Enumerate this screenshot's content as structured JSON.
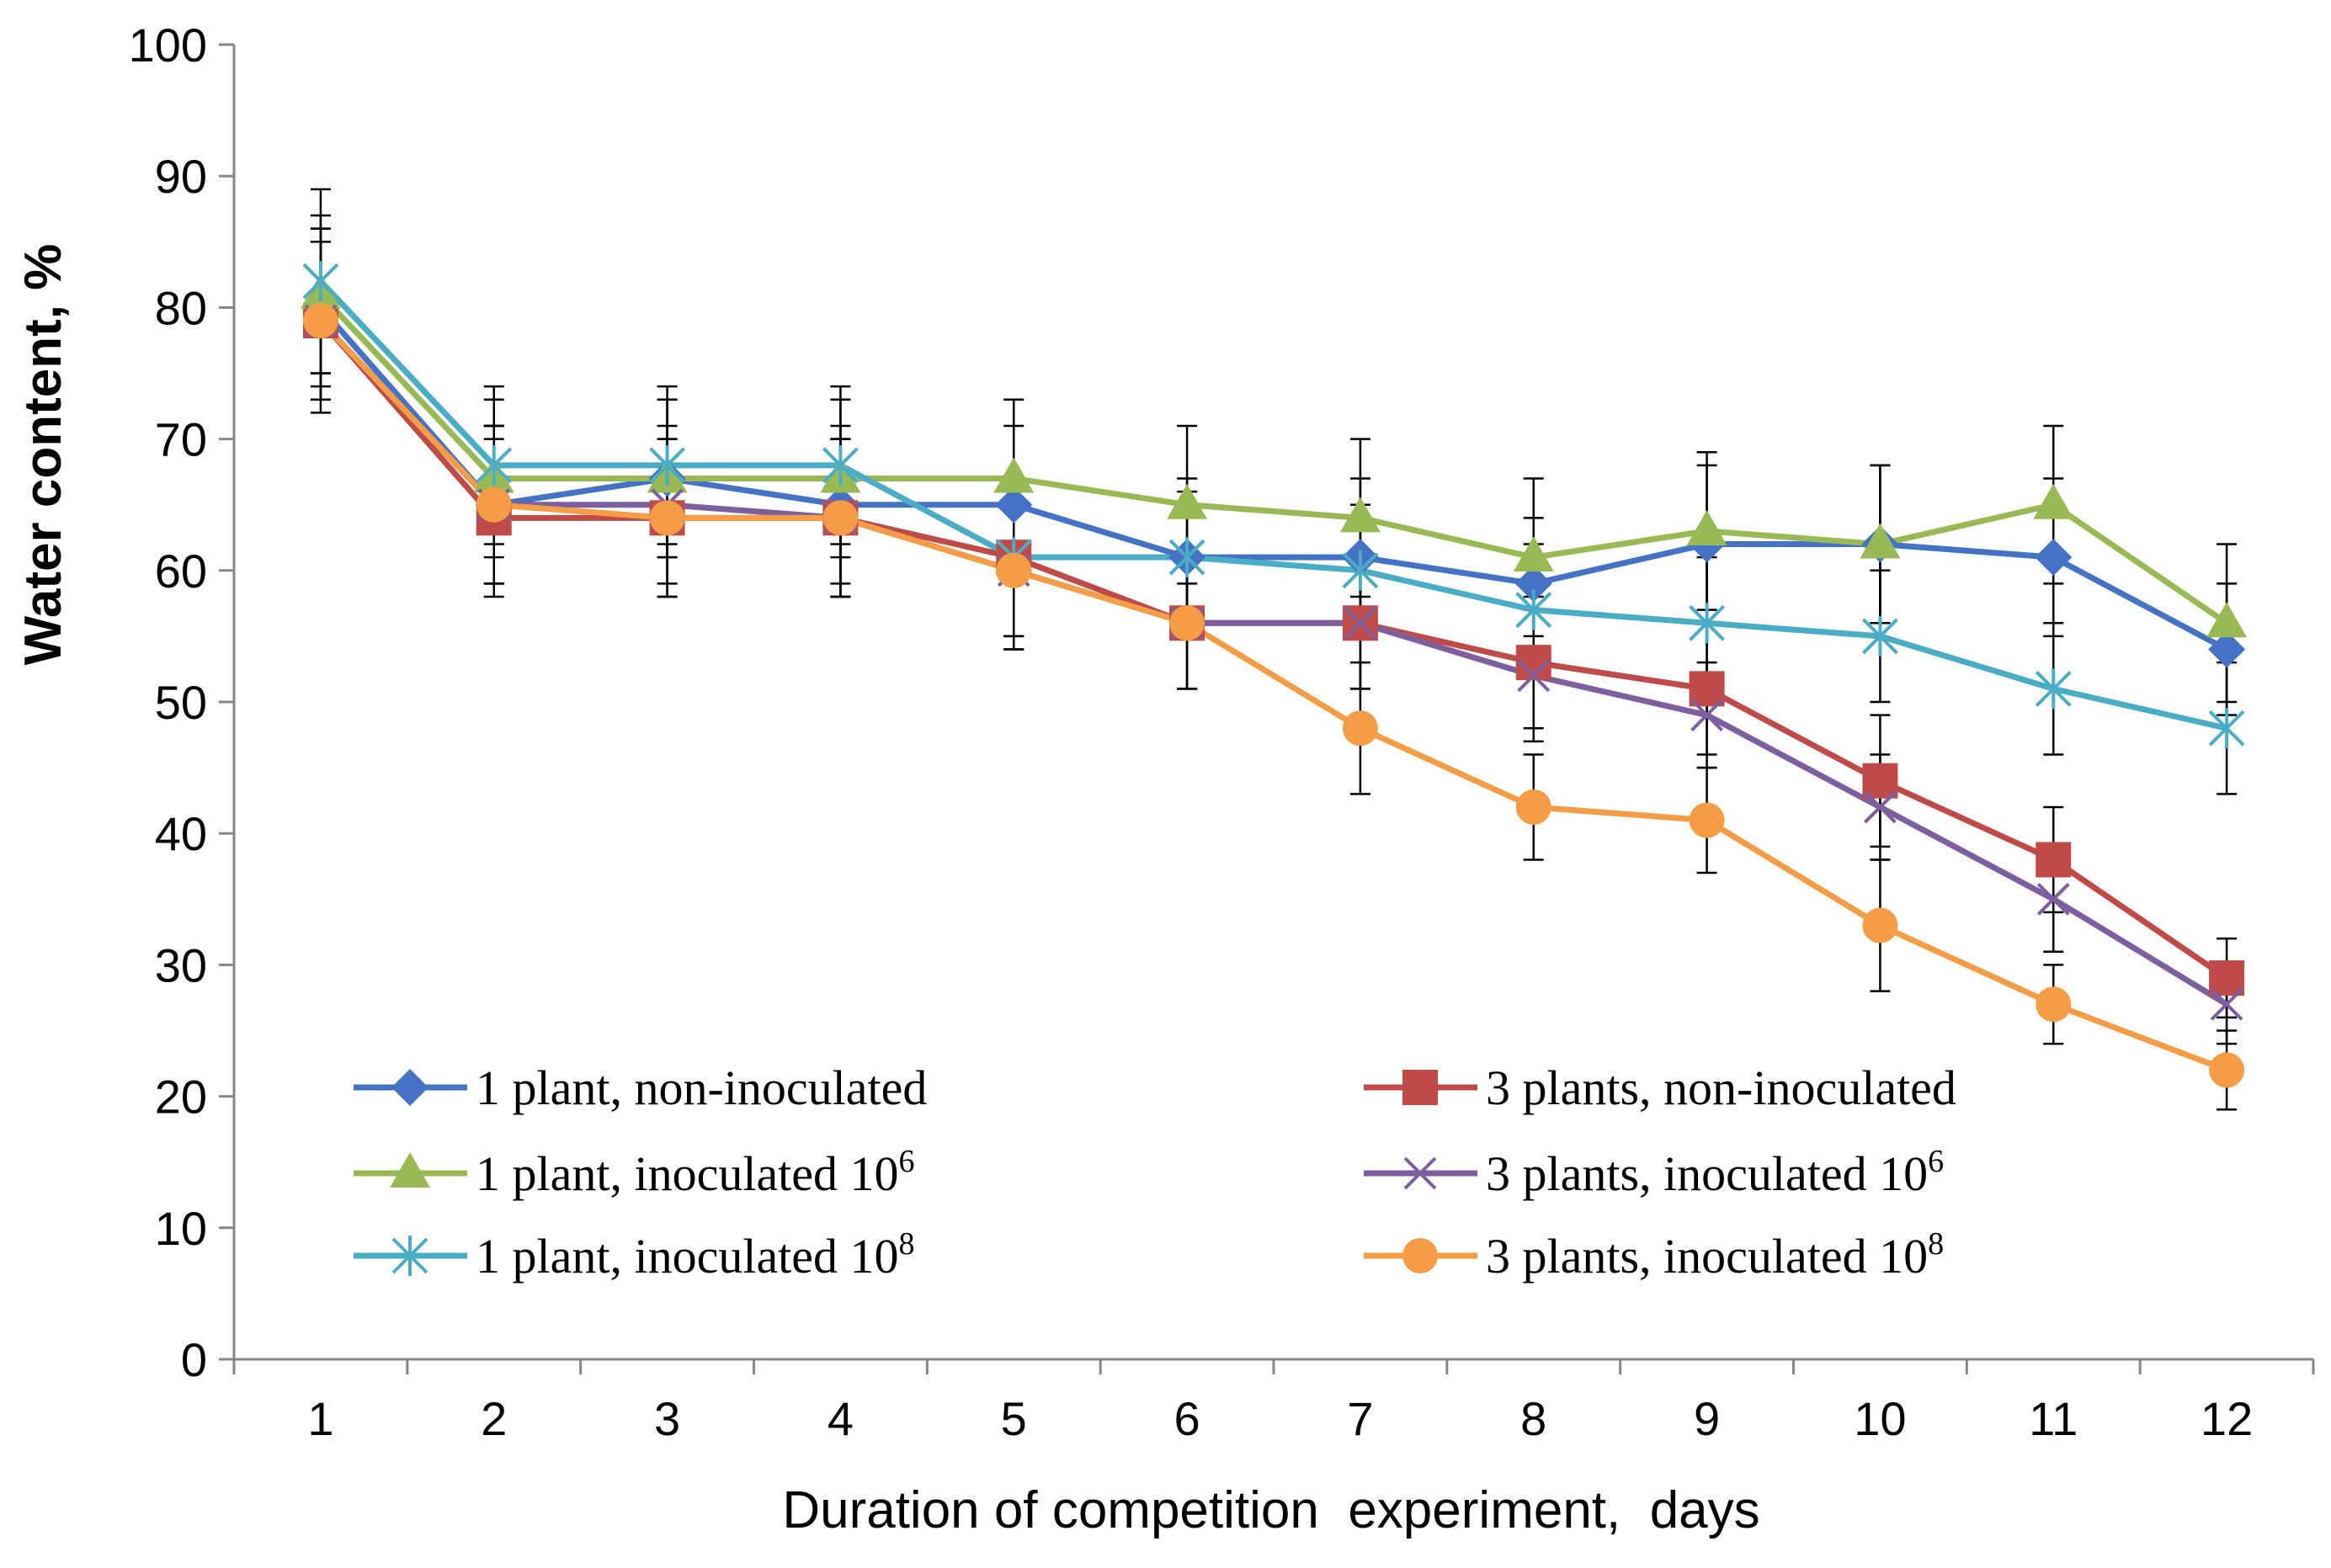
{
  "chart_data": {
    "type": "line",
    "title": "",
    "xlabel": "Duration of competition  experiment,  days",
    "ylabel": "Water content, %",
    "x": [
      1,
      2,
      3,
      4,
      5,
      6,
      7,
      8,
      9,
      10,
      11,
      12
    ],
    "xticks": [
      "1",
      "2",
      "3",
      "4",
      "5",
      "6",
      "7",
      "8",
      "9",
      "10",
      "11",
      "12"
    ],
    "ylim": [
      0,
      100
    ],
    "yticks": [
      "0",
      "10",
      "20",
      "30",
      "40",
      "50",
      "60",
      "70",
      "80",
      "90",
      "100"
    ],
    "grid": false,
    "legend_position": "bottom-inside",
    "series": [
      {
        "name": "1 plant, non-inoculated",
        "name_main": "1 plant, non-inoculated",
        "name_sup": "",
        "color": "#4472C4",
        "marker": "diamond",
        "values": [
          80,
          65,
          67,
          65,
          65,
          61,
          61,
          59,
          62,
          62,
          61,
          54
        ],
        "errors": [
          6,
          6,
          6,
          6,
          6,
          6,
          6,
          5,
          6,
          6,
          6,
          5
        ]
      },
      {
        "name": "3 plants, non-inoculated",
        "name_main": "3 plants, non-inoculated",
        "name_sup": "",
        "color": "#BE4B48",
        "marker": "square",
        "values": [
          79,
          64,
          64,
          64,
          61,
          56,
          56,
          53,
          51,
          44,
          38,
          29
        ],
        "errors": [
          6,
          6,
          6,
          6,
          6,
          5,
          5,
          5,
          5,
          5,
          4,
          3
        ]
      },
      {
        "name": "1 plant, inoculated 10^6",
        "name_main": "1 plant, inoculated 10",
        "name_sup": "6",
        "color": "#98B954",
        "marker": "triangle",
        "values": [
          81,
          67,
          67,
          67,
          67,
          65,
          64,
          61,
          63,
          62,
          65,
          56
        ],
        "errors": [
          6,
          6,
          6,
          6,
          6,
          6,
          6,
          6,
          6,
          6,
          6,
          6
        ]
      },
      {
        "name": "3 plants, inoculated 10^6",
        "name_main": "3 plants, inoculated 10",
        "name_sup": "6",
        "color": "#7D5FA0",
        "marker": "x",
        "values": [
          79,
          65,
          65,
          64,
          60,
          56,
          56,
          52,
          49,
          42,
          35,
          27
        ],
        "errors": [
          6,
          6,
          6,
          6,
          6,
          5,
          5,
          5,
          4,
          4,
          4,
          3
        ]
      },
      {
        "name": "1 plant, inoculated 10^8",
        "name_main": "1 plant, inoculated 10",
        "name_sup": "8",
        "color": "#4BACC6",
        "marker": "star",
        "values": [
          82,
          68,
          68,
          68,
          61,
          61,
          60,
          57,
          56,
          55,
          51,
          48
        ],
        "errors": [
          7,
          6,
          6,
          6,
          6,
          5,
          5,
          5,
          5,
          5,
          5,
          5
        ]
      },
      {
        "name": "3 plants, inoculated 10^8",
        "name_main": "3 plants, inoculated 10",
        "name_sup": "8",
        "color": "#F59D46",
        "marker": "circle",
        "values": [
          79,
          65,
          64,
          64,
          60,
          56,
          48,
          42,
          41,
          33,
          27,
          22
        ],
        "errors": [
          7,
          6,
          6,
          6,
          6,
          5,
          5,
          4,
          4,
          5,
          3,
          3
        ]
      }
    ]
  }
}
